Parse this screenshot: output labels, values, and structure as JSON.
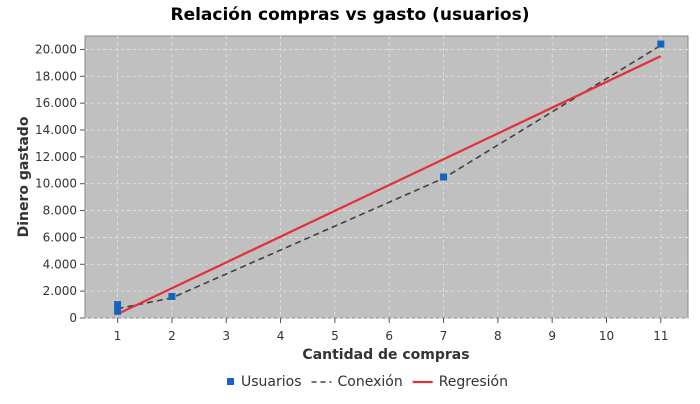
{
  "chart_data": {
    "type": "scatter",
    "title": "Relación compras vs gasto (usuarios)",
    "xlabel": "Cantidad de compras",
    "ylabel": "Dinero gastado",
    "xlim": [
      0.4,
      11.5
    ],
    "ylim": [
      0,
      21000
    ],
    "x_ticks": [
      1,
      2,
      3,
      4,
      5,
      6,
      7,
      8,
      9,
      10,
      11
    ],
    "y_ticks": [
      0,
      2000,
      4000,
      6000,
      8000,
      10000,
      12000,
      14000,
      16000,
      18000,
      20000
    ],
    "y_tick_labels": [
      "0",
      "2.000",
      "4.000",
      "6.000",
      "8.000",
      "10.000",
      "12.000",
      "14.000",
      "16.000",
      "18.000",
      "20.000"
    ],
    "grid": true,
    "legend_position": "bottom",
    "background_color": "#c0c0c0",
    "series": [
      {
        "name": "Usuarios",
        "kind": "points",
        "color": "#1565c0",
        "points": [
          [
            1,
            500
          ],
          [
            1,
            1000
          ],
          [
            2,
            1600
          ],
          [
            7,
            10500
          ],
          [
            11,
            20400
          ]
        ]
      },
      {
        "name": "Conexión",
        "kind": "dashed-line",
        "color": "#404040",
        "points": [
          [
            1,
            700
          ],
          [
            2,
            1500
          ],
          [
            7,
            10400
          ],
          [
            11,
            20300
          ]
        ]
      },
      {
        "name": "Regresión",
        "kind": "line",
        "color": "#e0303a",
        "points": [
          [
            1,
            300
          ],
          [
            11,
            19500
          ]
        ]
      }
    ]
  }
}
